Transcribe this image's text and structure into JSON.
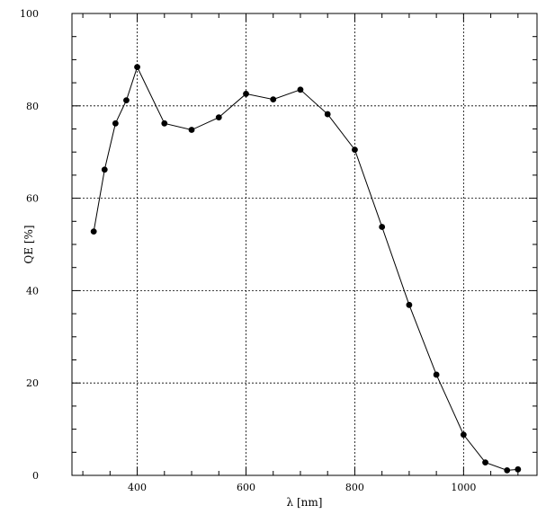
{
  "chart_data": {
    "type": "line",
    "title": "",
    "xlabel": "λ [nm]",
    "ylabel": "QE [%]",
    "xlim": [
      280,
      1135
    ],
    "ylim": [
      0,
      100
    ],
    "x_ticks": [
      400,
      600,
      800,
      1000
    ],
    "x_tick_labels": [
      "400",
      "600",
      "800",
      "1000"
    ],
    "y_ticks": [
      0,
      20,
      40,
      60,
      80,
      100
    ],
    "y_tick_labels": [
      "0",
      "20",
      "40",
      "60",
      "80",
      "100"
    ],
    "x_minor_step": 50,
    "y_minor_step": 5,
    "grid": true,
    "markers": true,
    "line_color": "#000000",
    "series": [
      {
        "x": [
          320,
          340,
          360,
          380,
          400,
          450,
          500,
          550,
          600,
          650,
          700,
          750,
          800,
          850,
          900,
          950,
          1000,
          1040,
          1080,
          1100
        ],
        "y": [
          52.8,
          66.2,
          76.2,
          81.2,
          88.4,
          76.2,
          74.8,
          77.5,
          82.6,
          81.4,
          83.5,
          78.2,
          70.5,
          53.8,
          36.9,
          21.8,
          8.8,
          2.8,
          1.1,
          1.3
        ]
      }
    ]
  }
}
